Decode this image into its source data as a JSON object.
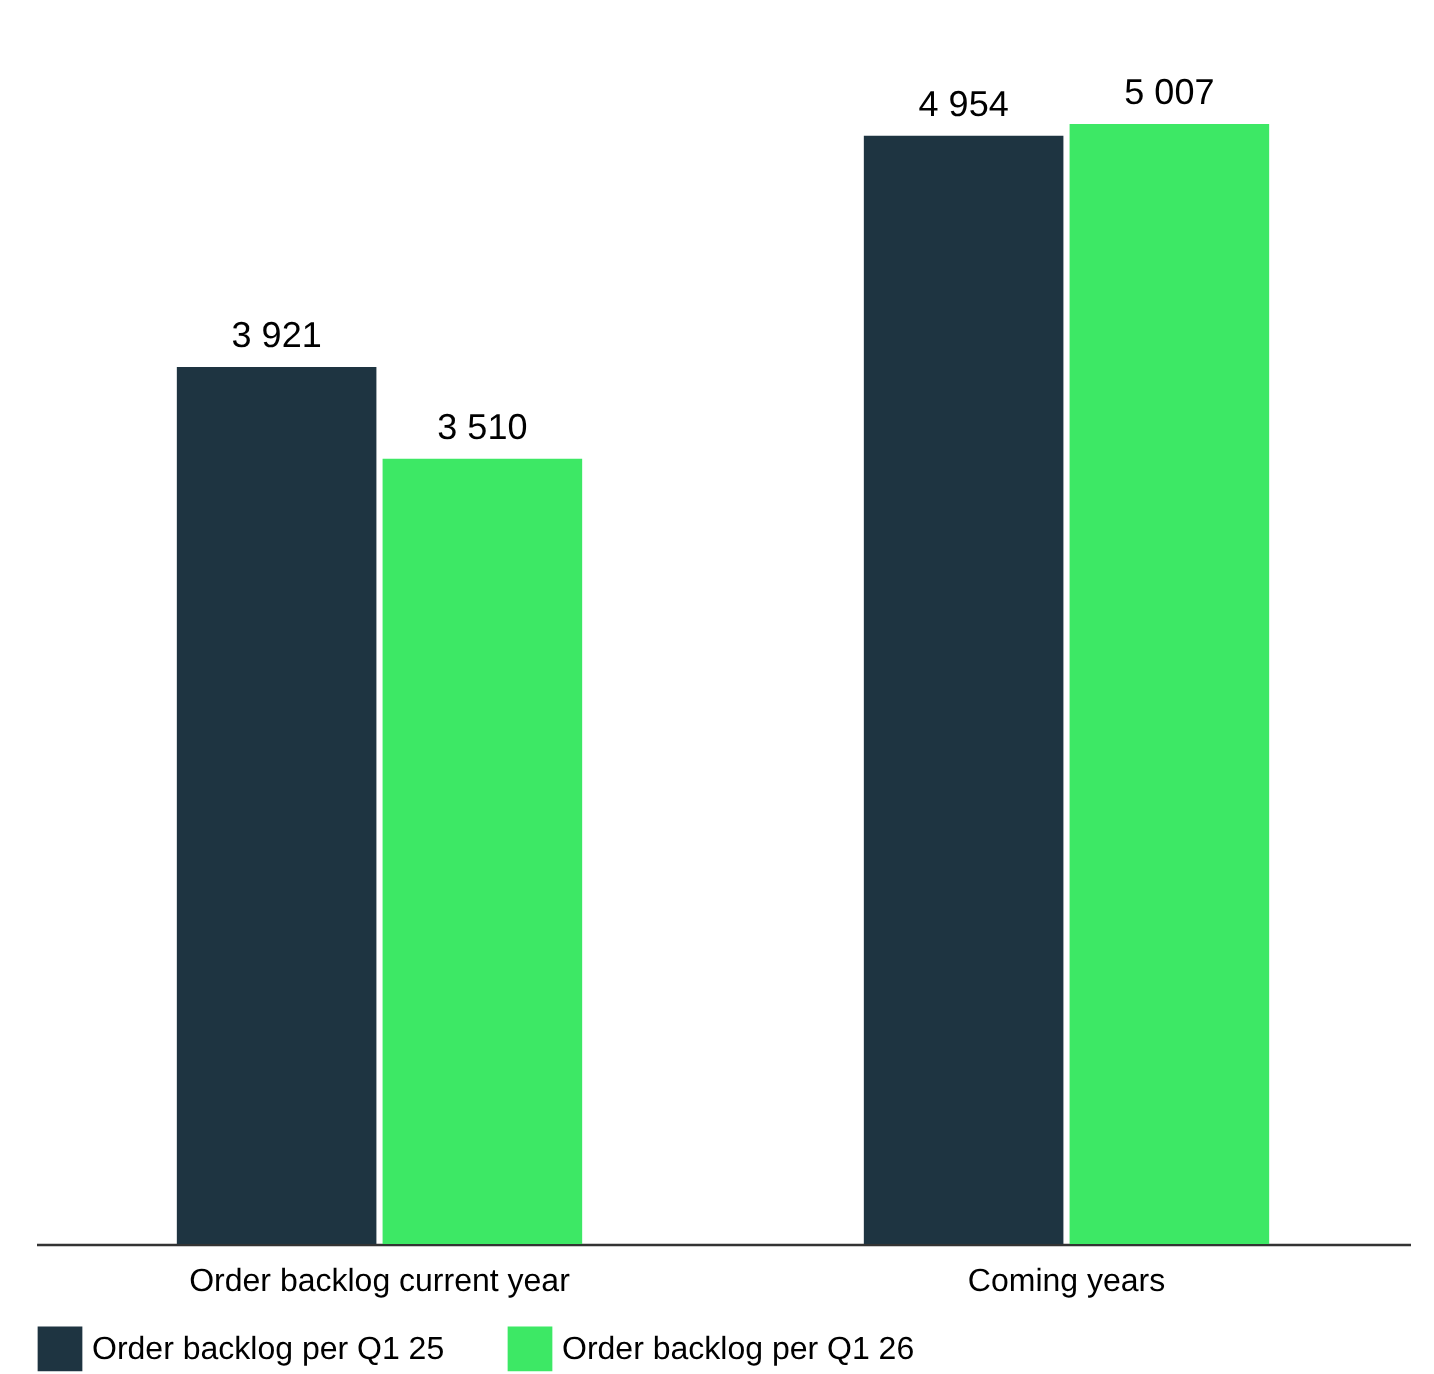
{
  "chart_data": {
    "type": "bar",
    "categories": [
      "Order backlog current year",
      "Coming years"
    ],
    "series": [
      {
        "name": "Order backlog per Q1 25",
        "color": "#1e3441",
        "values": [
          3921,
          4954
        ],
        "value_labels": [
          "3 921",
          "4 954"
        ]
      },
      {
        "name": "Order backlog per Q1 26",
        "color": "#3de865",
        "values": [
          3510,
          5007
        ],
        "value_labels": [
          "3 510",
          "5 007"
        ]
      }
    ],
    "legend": "bottom left",
    "tick_labels": "x"
  }
}
